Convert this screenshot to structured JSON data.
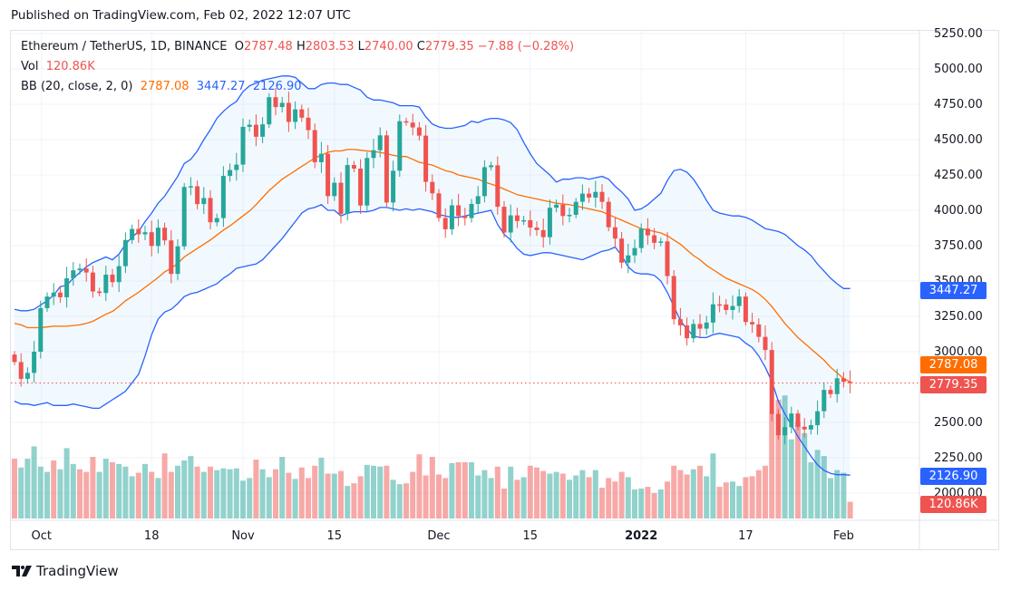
{
  "header": {
    "published": "Published on TradingView.com, Feb 02, 2022 12:07 UTC"
  },
  "legend": {
    "symbol": "Ethereum / TetherUS, 1D, BINANCE",
    "o_label": "O",
    "o_value": "2787.48",
    "h_label": "H",
    "h_value": "2803.53",
    "l_label": "L",
    "l_value": "2740.00",
    "c_label": "C",
    "c_value": "2779.35",
    "change": "−7.88 (−0.28%)",
    "vol_label": "Vol",
    "vol_value": "120.86K",
    "bb_label": "BB (20, close, 2, 0)",
    "bb_basis": "2787.08",
    "bb_upper": "3447.27",
    "bb_lower": "2126.90"
  },
  "price_tags": {
    "upper": "3447.27",
    "basis": "2787.08",
    "last": "2779.35",
    "lower": "2126.90",
    "volume": "120.86K"
  },
  "footer": {
    "brand": "TradingView"
  },
  "colors": {
    "up": "#26a69a",
    "down": "#ef5350",
    "upper_band": "#2962ff",
    "basis": "#ff6d00",
    "fill": "#2196f3"
  },
  "chart_data": {
    "type": "candlestick",
    "title": "Ethereum / TetherUS, 1D, BINANCE",
    "x_ticks": [
      "Oct",
      "18",
      "Nov",
      "15",
      "Dec",
      "15",
      "2022",
      "17",
      "Feb"
    ],
    "y_ticks": [
      "5250.00",
      "5000.00",
      "4750.00",
      "4500.00",
      "4250.00",
      "4000.00",
      "3750.00",
      "3500.00",
      "3250.00",
      "3000.00",
      "2500.00",
      "2250.00",
      "2000.00"
    ],
    "ylim": [
      1800,
      5300
    ],
    "first_date": "2021-09-27",
    "last_date": "2022-02-02",
    "closes": [
      2927,
      2808,
      2850,
      3000,
      3308,
      3390,
      3418,
      3385,
      3519,
      3576,
      3588,
      3560,
      3426,
      3415,
      3545,
      3492,
      3605,
      3790,
      3868,
      3830,
      3845,
      3748,
      3877,
      3787,
      3550,
      3745,
      4165,
      4170,
      4044,
      4087,
      3915,
      3945,
      4243,
      4285,
      4323,
      4590,
      4605,
      4520,
      4608,
      4800,
      4730,
      4760,
      4625,
      4714,
      4655,
      4567,
      4340,
      4400,
      4100,
      4195,
      3975,
      4320,
      4295,
      4034,
      4370,
      4425,
      4530,
      4055,
      4280,
      4630,
      4620,
      4586,
      4528,
      4201,
      4120,
      3946,
      3866,
      4035,
      3960,
      3945,
      4045,
      4100,
      4305,
      4318,
      4025,
      3843,
      3964,
      3924,
      3930,
      3878,
      3860,
      3810,
      4018,
      4040,
      3960,
      3968,
      4060,
      4118,
      4090,
      4130,
      4060,
      3880,
      3800,
      3630,
      3681,
      3733,
      3870,
      3823,
      3770,
      3780,
      3535,
      3230,
      3186,
      3095,
      3196,
      3163,
      3206,
      3335,
      3334,
      3295,
      3323,
      3390,
      3210,
      3193,
      3105,
      3012,
      2560,
      2409,
      2466,
      2563,
      2469,
      2450,
      2481,
      2579,
      2730,
      2700,
      2812,
      2787,
      2779
    ],
    "bb_upper": [
      3300,
      3290,
      3290,
      3300,
      3330,
      3360,
      3400,
      3460,
      3470,
      3520,
      3560,
      3600,
      3630,
      3650,
      3670,
      3650,
      3690,
      3760,
      3810,
      3850,
      3920,
      3980,
      4050,
      4100,
      4170,
      4240,
      4330,
      4360,
      4420,
      4500,
      4570,
      4650,
      4700,
      4740,
      4770,
      4840,
      4880,
      4900,
      4920,
      4930,
      4940,
      4950,
      4950,
      4940,
      4900,
      4860,
      4860,
      4890,
      4900,
      4900,
      4890,
      4890,
      4870,
      4850,
      4800,
      4780,
      4780,
      4770,
      4760,
      4740,
      4740,
      4740,
      4730,
      4660,
      4610,
      4590,
      4580,
      4580,
      4590,
      4600,
      4630,
      4620,
      4640,
      4650,
      4650,
      4640,
      4620,
      4570,
      4480,
      4400,
      4330,
      4290,
      4250,
      4200,
      4220,
      4220,
      4230,
      4230,
      4220,
      4230,
      4240,
      4220,
      4170,
      4130,
      4080,
      4000,
      4010,
      4040,
      4080,
      4120,
      4210,
      4280,
      4290,
      4270,
      4220,
      4150,
      4070,
      4000,
      3980,
      3970,
      3960,
      3960,
      3950,
      3930,
      3900,
      3870,
      3860,
      3850,
      3830,
      3790,
      3750,
      3720,
      3680,
      3620,
      3570,
      3520,
      3480,
      3447,
      3447
    ],
    "bb_basis": [
      3200,
      3190,
      3170,
      3170,
      3170,
      3175,
      3180,
      3180,
      3180,
      3185,
      3190,
      3200,
      3215,
      3240,
      3265,
      3285,
      3320,
      3360,
      3390,
      3420,
      3455,
      3490,
      3525,
      3565,
      3590,
      3625,
      3670,
      3700,
      3730,
      3760,
      3790,
      3825,
      3860,
      3890,
      3925,
      3960,
      3995,
      4040,
      4090,
      4140,
      4180,
      4220,
      4250,
      4280,
      4310,
      4340,
      4370,
      4390,
      4410,
      4420,
      4420,
      4430,
      4430,
      4425,
      4420,
      4415,
      4410,
      4400,
      4390,
      4380,
      4380,
      4360,
      4340,
      4330,
      4320,
      4300,
      4280,
      4270,
      4250,
      4240,
      4230,
      4220,
      4200,
      4185,
      4170,
      4150,
      4130,
      4110,
      4100,
      4090,
      4080,
      4070,
      4060,
      4050,
      4045,
      4040,
      4030,
      4020,
      4010,
      4000,
      3990,
      3970,
      3950,
      3930,
      3910,
      3890,
      3870,
      3860,
      3850,
      3840,
      3820,
      3790,
      3760,
      3720,
      3680,
      3650,
      3610,
      3580,
      3550,
      3520,
      3500,
      3480,
      3460,
      3440,
      3410,
      3370,
      3320,
      3260,
      3200,
      3150,
      3100,
      3060,
      3020,
      2980,
      2940,
      2890,
      2850,
      2810,
      2787
    ],
    "bb_lower": [
      2650,
      2630,
      2630,
      2620,
      2630,
      2640,
      2620,
      2620,
      2620,
      2630,
      2620,
      2610,
      2600,
      2600,
      2630,
      2660,
      2690,
      2720,
      2780,
      2840,
      2970,
      3120,
      3230,
      3280,
      3300,
      3340,
      3390,
      3410,
      3420,
      3440,
      3460,
      3480,
      3520,
      3550,
      3590,
      3600,
      3610,
      3620,
      3650,
      3700,
      3750,
      3800,
      3860,
      3920,
      3980,
      4010,
      4020,
      4040,
      4000,
      4000,
      3960,
      3980,
      3990,
      3990,
      3990,
      4000,
      4020,
      4020,
      4010,
      4000,
      4010,
      4000,
      4010,
      4000,
      3990,
      3970,
      3960,
      3950,
      3950,
      3960,
      3970,
      3980,
      3990,
      4000,
      3900,
      3830,
      3790,
      3730,
      3690,
      3680,
      3690,
      3700,
      3700,
      3690,
      3680,
      3670,
      3660,
      3650,
      3670,
      3690,
      3710,
      3720,
      3740,
      3680,
      3600,
      3560,
      3550,
      3550,
      3540,
      3500,
      3420,
      3320,
      3220,
      3160,
      3110,
      3100,
      3100,
      3120,
      3130,
      3120,
      3110,
      3100,
      3060,
      3030,
      2970,
      2890,
      2790,
      2650,
      2560,
      2480,
      2400,
      2330,
      2260,
      2200,
      2160,
      2140,
      2130,
      2130,
      2127
    ],
    "volume_units": "relative",
    "volumes": [
      68,
      58,
      68,
      82,
      59,
      53,
      66,
      56,
      80,
      62,
      56,
      53,
      70,
      53,
      68,
      64,
      62,
      59,
      48,
      52,
      62,
      53,
      46,
      74,
      53,
      60,
      66,
      71,
      59,
      53,
      59,
      55,
      57,
      56,
      57,
      43,
      46,
      67,
      56,
      47,
      56,
      70,
      52,
      45,
      58,
      46,
      60,
      69,
      51,
      51,
      54,
      37,
      40,
      48,
      61,
      60,
      59,
      60,
      44,
      39,
      40,
      53,
      73,
      49,
      70,
      50,
      46,
      63,
      64,
      64,
      64,
      49,
      55,
      46,
      59,
      34,
      59,
      44,
      47,
      60,
      58,
      54,
      51,
      53,
      51,
      44,
      49,
      55,
      47,
      55,
      35,
      46,
      42,
      53,
      47,
      33,
      34,
      36,
      29,
      33,
      42,
      60,
      55,
      50,
      56,
      60,
      48,
      74,
      36,
      41,
      42,
      37,
      47,
      48,
      55,
      60,
      120,
      135,
      140,
      90,
      110,
      97,
      64,
      78,
      71,
      46,
      55,
      52,
      19
    ],
    "volume_up": [
      false,
      true,
      true,
      true,
      true,
      true,
      false,
      true,
      true,
      true,
      false,
      false,
      false,
      true,
      true,
      false,
      true,
      true,
      true,
      false,
      true,
      false,
      true,
      false,
      false,
      true,
      true,
      true,
      false,
      true,
      false,
      true,
      true,
      true,
      true,
      true,
      true,
      false,
      true,
      true,
      false,
      true,
      false,
      true,
      false,
      false,
      false,
      true,
      false,
      true,
      false,
      true,
      false,
      false,
      true,
      true,
      true,
      false,
      true,
      true,
      false,
      false,
      false,
      false,
      false,
      false,
      false,
      true,
      false,
      false,
      true,
      true,
      true,
      true,
      false,
      false,
      true,
      false,
      true,
      false,
      false,
      false,
      true,
      true,
      false,
      true,
      true,
      true,
      false,
      true,
      false,
      false,
      false,
      false,
      true,
      true,
      true,
      false,
      false,
      true,
      false,
      false,
      false,
      false,
      true,
      false,
      true,
      true,
      false,
      false,
      true,
      true,
      false,
      false,
      false,
      false,
      false,
      false,
      true,
      true,
      false,
      true,
      true,
      true,
      true,
      true,
      true,
      true,
      false
    ]
  }
}
